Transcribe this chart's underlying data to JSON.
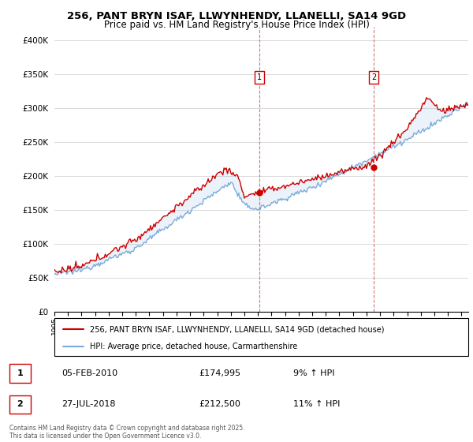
{
  "title": "256, PANT BRYN ISAF, LLWYNHENDY, LLANELLI, SA14 9GD",
  "subtitle": "Price paid vs. HM Land Registry's House Price Index (HPI)",
  "legend_line1": "256, PANT BRYN ISAF, LLWYNHENDY, LLANELLI, SA14 9GD (detached house)",
  "legend_line2": "HPI: Average price, detached house, Carmarthenshire",
  "annotation1_label": "1",
  "annotation1_date": "05-FEB-2010",
  "annotation1_price": "£174,995",
  "annotation1_hpi": "9% ↑ HPI",
  "annotation2_label": "2",
  "annotation2_date": "27-JUL-2018",
  "annotation2_price": "£212,500",
  "annotation2_hpi": "11% ↑ HPI",
  "footer": "Contains HM Land Registry data © Crown copyright and database right 2025.\nThis data is licensed under the Open Government Licence v3.0.",
  "red_color": "#cc0000",
  "blue_color": "#7aacdc",
  "fill_color": "#ddeeff",
  "vline_color": "#cc6666",
  "background_color": "#ffffff",
  "grid_color": "#cccccc",
  "ylim": [
    0,
    420000
  ],
  "yticks": [
    0,
    50000,
    100000,
    150000,
    200000,
    250000,
    300000,
    350000,
    400000
  ],
  "xstart_year": 1995,
  "xend_year": 2025.5,
  "event1_year": 2010.09,
  "event1_price": 174995,
  "event2_year": 2018.54,
  "event2_price": 212500
}
